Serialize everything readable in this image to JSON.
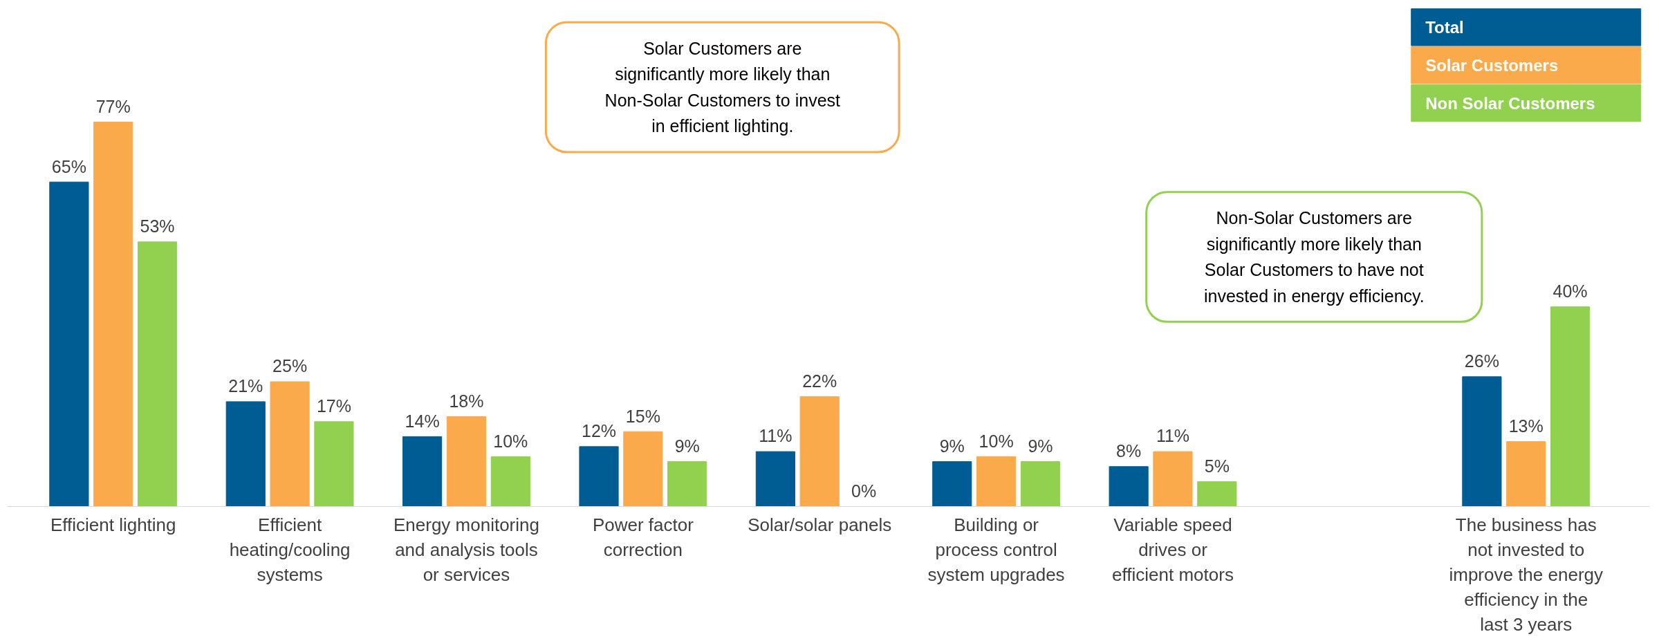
{
  "chart_data": {
    "type": "bar",
    "categories": [
      "Efficient lighting",
      "Efficient heating/cooling systems",
      "Energy monitoring and analysis tools or services",
      "Power factor correction",
      "Solar/solar panels",
      "Building or process control system upgrades",
      "Variable speed drives or efficient motors",
      null,
      "The business has not invested to improve the energy efficiency in the last 3 years"
    ],
    "series": [
      {
        "name": "Total",
        "color": "#005d93",
        "values": [
          65,
          21,
          14,
          12,
          11,
          9,
          8,
          null,
          26
        ],
        "value_labels": [
          "65%",
          "21%",
          "14%",
          "12%",
          "11%",
          "9%",
          "8%",
          null,
          "26%"
        ]
      },
      {
        "name": "Solar Customers",
        "color": "#fbaa4b",
        "values": [
          77,
          25,
          18,
          15,
          22,
          10,
          11,
          null,
          13
        ],
        "value_labels": [
          "77%",
          "25%",
          "18%",
          "15%",
          "22%",
          "10%",
          "11%",
          null,
          "13%"
        ]
      },
      {
        "name": "Non Solar Customers",
        "color": "#92d050",
        "values": [
          53,
          17,
          10,
          9,
          0,
          9,
          5,
          null,
          40
        ],
        "value_labels": [
          "53%",
          "17%",
          "10%",
          "9%",
          "0%",
          "9%",
          "5%",
          null,
          "40%"
        ]
      }
    ],
    "legend": "top right",
    "grid": false,
    "annotations": [
      "Solar Customers are significantly more likely than Non-Solar Customers to invest in efficient lighting.",
      "Non-Solar Customers are significantly more likely than Solar Customers to have not invested in energy efficiency."
    ]
  }
}
